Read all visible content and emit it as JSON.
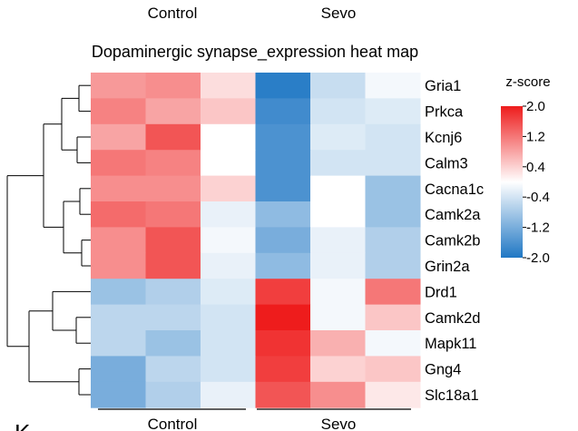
{
  "chart_data": {
    "type": "heatmap",
    "title": "Dopaminergic synapse_expression heat map",
    "top_group_labels": [
      "Control",
      "Sevo"
    ],
    "bottom_group_labels": [
      "Control",
      "Sevo"
    ],
    "genes": [
      "Gria1",
      "Prkca",
      "Kcnj6",
      "Calm3",
      "Cacna1c",
      "Camk2a",
      "Camk2b",
      "Grin2a",
      "Drd1",
      "Camk2d",
      "Mapk11",
      "Gng4",
      "Slc18a1"
    ],
    "columns": [
      "Control-1",
      "Control-2",
      "Control-3",
      "Sevo-1",
      "Sevo-2",
      "Sevo-3"
    ],
    "values": [
      [
        0.9,
        1.0,
        0.3,
        -1.9,
        -0.5,
        -0.1
      ],
      [
        1.1,
        0.8,
        0.5,
        -1.7,
        -0.4,
        -0.3
      ],
      [
        0.8,
        1.5,
        0.0,
        -1.6,
        -0.3,
        -0.4
      ],
      [
        1.2,
        1.1,
        0.0,
        -1.6,
        -0.4,
        -0.4
      ],
      [
        1.0,
        1.0,
        0.4,
        -1.6,
        0.0,
        -0.9
      ],
      [
        1.3,
        1.2,
        -0.2,
        -1.0,
        0.0,
        -0.9
      ],
      [
        1.0,
        1.5,
        -0.1,
        -1.2,
        -0.2,
        -0.7
      ],
      [
        1.0,
        1.5,
        -0.2,
        -1.0,
        -0.2,
        -0.7
      ],
      [
        -0.9,
        -0.7,
        -0.3,
        1.7,
        -0.1,
        1.2
      ],
      [
        -0.6,
        -0.6,
        -0.4,
        2.0,
        -0.1,
        0.5
      ],
      [
        -0.6,
        -0.9,
        -0.4,
        1.8,
        0.7,
        -0.1
      ],
      [
        -1.2,
        -0.6,
        -0.4,
        1.7,
        0.4,
        0.5
      ],
      [
        -1.2,
        -0.7,
        -0.2,
        1.5,
        1.0,
        0.2
      ]
    ],
    "legend": {
      "title": "z-score",
      "ticks": [
        "2.0",
        "1.2",
        "0.4",
        "-0.4",
        "-1.2",
        "-2.0"
      ],
      "tick_values": [
        2.0,
        1.2,
        0.4,
        -0.4,
        -1.2,
        -2.0
      ],
      "range": [
        -2.0,
        2.0
      ],
      "colors": {
        "low": "#1f77c4",
        "mid": "#ffffff",
        "high": "#ee1c1c"
      }
    },
    "dendrogram": "rows",
    "partial_letter": "K"
  }
}
